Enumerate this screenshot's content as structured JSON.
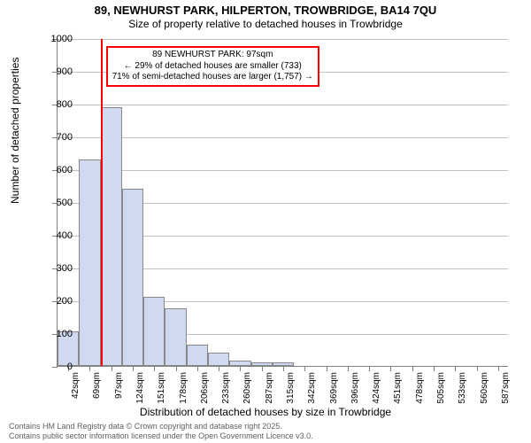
{
  "title": {
    "main": "89, NEWHURST PARK, HILPERTON, TROWBRIDGE, BA14 7QU",
    "sub": "Size of property relative to detached houses in Trowbridge"
  },
  "axes": {
    "ylabel": "Number of detached properties",
    "xlabel": "Distribution of detached houses by size in Trowbridge",
    "ylim": [
      0,
      1000
    ],
    "ytick_step": 100,
    "label_fontsize": 12,
    "tick_fontsize": 11
  },
  "colors": {
    "bar_fill": "#cfd9ef",
    "bar_stroke": "#888888",
    "grid": "#c0c0c0",
    "axis": "#808080",
    "marker": "#ff0000",
    "annotation_border": "#ff0000",
    "background": "#ffffff",
    "footer_text": "#606060"
  },
  "histogram": {
    "type": "histogram",
    "x_labels": [
      "42sqm",
      "69sqm",
      "97sqm",
      "124sqm",
      "151sqm",
      "178sqm",
      "206sqm",
      "233sqm",
      "260sqm",
      "287sqm",
      "315sqm",
      "342sqm",
      "369sqm",
      "396sqm",
      "424sqm",
      "451sqm",
      "478sqm",
      "505sqm",
      "533sqm",
      "560sqm",
      "587sqm"
    ],
    "values": [
      105,
      630,
      790,
      540,
      210,
      175,
      65,
      40,
      15,
      10,
      12,
      0,
      0,
      0,
      0,
      0,
      0,
      0,
      0,
      0,
      0
    ]
  },
  "marker": {
    "bin_index": 2,
    "property_label": "89 NEWHURST PARK: 97sqm",
    "line1": "← 29% of detached houses are smaller (733)",
    "line2": "71% of semi-detached houses are larger (1,757) →"
  },
  "footer": {
    "line1": "Contains HM Land Registry data © Crown copyright and database right 2025.",
    "line2": "Contains public sector information licensed under the Open Government Licence v3.0."
  }
}
